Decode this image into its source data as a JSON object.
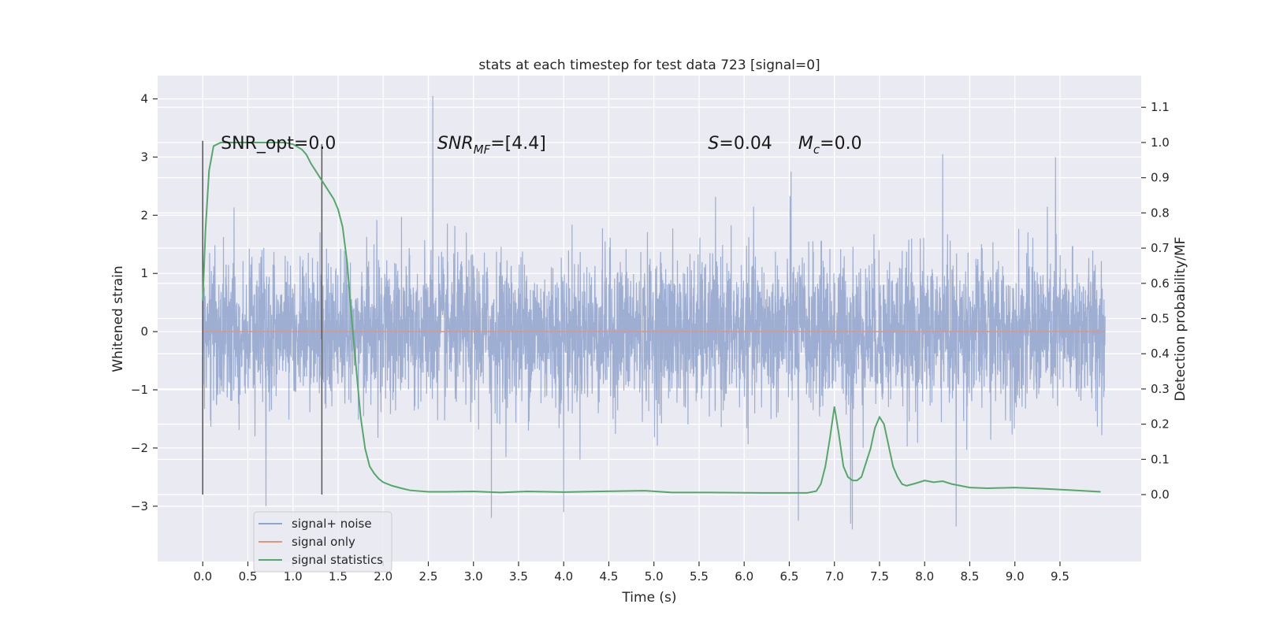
{
  "chart_data": {
    "type": "line",
    "title": "stats at each timestep for test data 723 [signal=0]",
    "xlabel": "Time (s)",
    "ylabel": "Whitened strain",
    "ylabel_right": "Detection probability/MF",
    "xlim": [
      -0.5,
      10.4
    ],
    "ylim": [
      -3.95,
      4.4
    ],
    "ylim_right": [
      -0.19,
      1.19
    ],
    "x_ticks": [
      0.0,
      0.5,
      1.0,
      1.5,
      2.0,
      2.5,
      3.0,
      3.5,
      4.0,
      4.5,
      5.0,
      5.5,
      6.0,
      6.5,
      7.0,
      7.5,
      8.0,
      8.5,
      9.0,
      9.5
    ],
    "x_tick_labels": [
      "0.0",
      "0.5",
      "1.0",
      "1.5",
      "2.0",
      "2.5",
      "3.0",
      "3.5",
      "4.0",
      "4.5",
      "5.0",
      "5.5",
      "6.0",
      "6.5",
      "7.0",
      "7.5",
      "8.0",
      "8.5",
      "9.0",
      "9.5"
    ],
    "y_ticks": [
      -3,
      -2,
      -1,
      0,
      1,
      2,
      3,
      4
    ],
    "y_tick_labels": [
      "−3",
      "−2",
      "−1",
      "0",
      "1",
      "2",
      "3",
      "4"
    ],
    "y_ticks_right": [
      0.0,
      0.1,
      0.2,
      0.3,
      0.4,
      0.5,
      0.6,
      0.7,
      0.8,
      0.9,
      1.0,
      1.1
    ],
    "y_tick_labels_right": [
      "0.0",
      "0.1",
      "0.2",
      "0.3",
      "0.4",
      "0.5",
      "0.6",
      "0.7",
      "0.8",
      "0.9",
      "1.0",
      "1.1"
    ],
    "grid": true,
    "legend_position": "lower-left",
    "series": [
      {
        "name": "signal+ noise",
        "color": "#8fa3cc",
        "axis": "left",
        "x_range": [
          0.0,
          10.0
        ],
        "amplitude_std": 0.65,
        "peaks": [
          {
            "x": 2.55,
            "y": 4.05
          },
          {
            "x": 9.45,
            "y": 3.0
          },
          {
            "x": 8.2,
            "y": 3.05
          },
          {
            "x": 6.52,
            "y": 2.75
          },
          {
            "x": 0.7,
            "y": -3.0
          },
          {
            "x": 7.2,
            "y": -3.4
          },
          {
            "x": 8.35,
            "y": -3.35
          },
          {
            "x": 3.2,
            "y": -3.2
          },
          {
            "x": 6.6,
            "y": -3.25
          },
          {
            "x": 4.0,
            "y": -3.1
          },
          {
            "x": 7.18,
            "y": -3.3
          }
        ]
      },
      {
        "name": "signal only",
        "color": "#e3957e",
        "axis": "left",
        "x": [
          0.0,
          10.0
        ],
        "y": [
          0.0,
          0.0
        ]
      },
      {
        "name": "signal statistics",
        "color": "#55a868",
        "axis": "right",
        "x": [
          0.0,
          0.03,
          0.07,
          0.12,
          0.2,
          0.3,
          0.5,
          0.7,
          0.9,
          1.0,
          1.1,
          1.15,
          1.2,
          1.25,
          1.3,
          1.35,
          1.4,
          1.45,
          1.5,
          1.55,
          1.6,
          1.65,
          1.7,
          1.75,
          1.8,
          1.85,
          1.9,
          1.95,
          2.0,
          2.1,
          2.2,
          2.3,
          2.5,
          2.7,
          3.0,
          3.3,
          3.6,
          4.0,
          4.4,
          4.9,
          5.2,
          5.6,
          6.2,
          6.7,
          6.8,
          6.85,
          6.9,
          6.95,
          7.0,
          7.05,
          7.1,
          7.15,
          7.2,
          7.25,
          7.3,
          7.35,
          7.4,
          7.45,
          7.5,
          7.55,
          7.6,
          7.65,
          7.7,
          7.75,
          7.8,
          7.9,
          8.0,
          8.1,
          8.2,
          8.3,
          8.5,
          8.7,
          9.0,
          9.3,
          9.6,
          9.95
        ],
        "y": [
          0.55,
          0.75,
          0.92,
          0.99,
          1.0,
          1.0,
          1.0,
          1.0,
          1.0,
          0.995,
          0.98,
          0.965,
          0.94,
          0.92,
          0.9,
          0.88,
          0.86,
          0.84,
          0.81,
          0.76,
          0.66,
          0.5,
          0.36,
          0.22,
          0.13,
          0.08,
          0.06,
          0.045,
          0.035,
          0.025,
          0.018,
          0.012,
          0.008,
          0.008,
          0.009,
          0.006,
          0.009,
          0.007,
          0.009,
          0.011,
          0.006,
          0.006,
          0.005,
          0.005,
          0.01,
          0.03,
          0.08,
          0.16,
          0.25,
          0.17,
          0.08,
          0.05,
          0.04,
          0.04,
          0.05,
          0.09,
          0.13,
          0.19,
          0.22,
          0.2,
          0.14,
          0.08,
          0.05,
          0.03,
          0.025,
          0.032,
          0.04,
          0.035,
          0.038,
          0.03,
          0.02,
          0.018,
          0.02,
          0.017,
          0.013,
          0.008
        ]
      }
    ],
    "vertical_lines": [
      {
        "x": 0.0,
        "y_range": [
          0.0,
          1.005
        ]
      },
      {
        "x": 1.32,
        "y_range": [
          0.0,
          0.995
        ]
      }
    ],
    "annotations": [
      {
        "text": "SNR_opt=0.0",
        "x": 0.2,
        "y": 1.0
      },
      {
        "text_parts": [
          "SNR",
          "MF",
          "=[4.4]"
        ],
        "x": 2.6,
        "y": 1.0
      },
      {
        "text_parts": [
          "S",
          "=0.04"
        ],
        "x": 5.6,
        "y": 1.0
      },
      {
        "text_parts": [
          "M",
          "c",
          "=0.0"
        ],
        "x": 6.6,
        "y": 1.0
      }
    ]
  }
}
